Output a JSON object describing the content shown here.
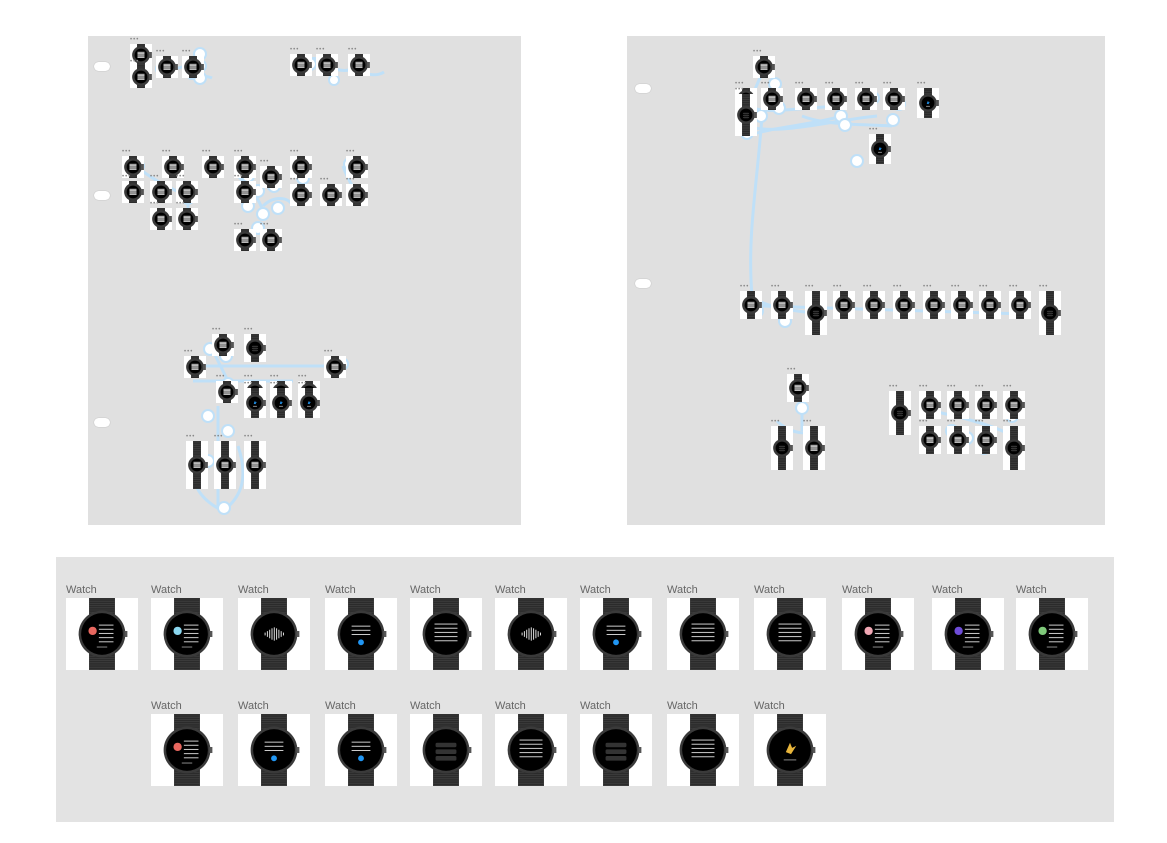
{
  "canvas": {
    "background": "#ffffff",
    "panel_color": "#e0e0e0",
    "wire_color": "#bfe0f8",
    "wire_node_fill": "#ffffff"
  },
  "bottom_frames": {
    "label": "Watch",
    "row1": [
      {
        "id": "w1",
        "screen": "text-avatar",
        "avatar": "#e8675f"
      },
      {
        "id": "w2",
        "screen": "text-avatar",
        "avatar": "#8bd7ef"
      },
      {
        "id": "w3",
        "screen": "waveform",
        "avatar": ""
      },
      {
        "id": "w4",
        "screen": "text-button",
        "avatar": "#2196f3"
      },
      {
        "id": "w5",
        "screen": "text",
        "avatar": ""
      },
      {
        "id": "w6",
        "screen": "waveform",
        "avatar": ""
      },
      {
        "id": "w7",
        "screen": "text-button",
        "avatar": "#2196f3"
      },
      {
        "id": "w8",
        "screen": "text",
        "avatar": ""
      },
      {
        "id": "w9",
        "screen": "text",
        "avatar": ""
      },
      {
        "id": "w10",
        "screen": "text-avatar",
        "avatar": "#f2a8b5"
      },
      {
        "id": "w11",
        "screen": "text-avatar",
        "avatar": "#6e4cd8"
      },
      {
        "id": "w12",
        "screen": "text-avatar",
        "avatar": "#7fc97a"
      }
    ],
    "row2": [
      {
        "id": "w13",
        "screen": "text-avatar",
        "avatar": "#e8675f"
      },
      {
        "id": "w14",
        "screen": "text-button",
        "avatar": "#2196f3"
      },
      {
        "id": "w15",
        "screen": "text-button",
        "avatar": "#2196f3"
      },
      {
        "id": "w16",
        "screen": "list",
        "avatar": ""
      },
      {
        "id": "w17",
        "screen": "text",
        "avatar": ""
      },
      {
        "id": "w18",
        "screen": "list",
        "avatar": ""
      },
      {
        "id": "w19",
        "screen": "text",
        "avatar": ""
      },
      {
        "id": "w20",
        "screen": "icon",
        "avatar": "#e8b53b"
      }
    ]
  }
}
